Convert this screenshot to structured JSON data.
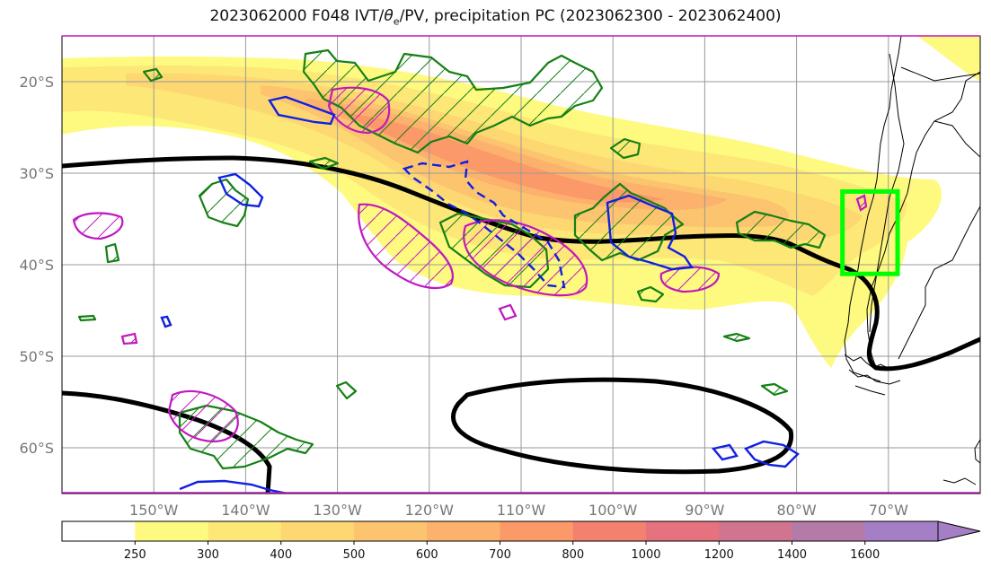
{
  "title": {
    "run": "2023062000 F048 IVT/",
    "theta": "θ",
    "theta_sub": "e",
    "rest": "/PV, precipitation PC (2023062300 - 2023062400)"
  },
  "lat_ticks": [
    {
      "value": -20,
      "label": "20°S"
    },
    {
      "value": -30,
      "label": "30°S"
    },
    {
      "value": -40,
      "label": "40°S"
    },
    {
      "value": -50,
      "label": "50°S"
    },
    {
      "value": -60,
      "label": "60°S"
    }
  ],
  "lon_ticks": [
    {
      "value": -150,
      "label": "150°W"
    },
    {
      "value": -140,
      "label": "140°W"
    },
    {
      "value": -130,
      "label": "130°W"
    },
    {
      "value": -120,
      "label": "120°W"
    },
    {
      "value": -110,
      "label": "110°W"
    },
    {
      "value": -100,
      "label": "100°W"
    },
    {
      "value": -90,
      "label": "90°W"
    },
    {
      "value": -80,
      "label": "80°W"
    },
    {
      "value": -70,
      "label": "70°W"
    }
  ],
  "extent": {
    "lon": [
      -160,
      -60
    ],
    "lat": [
      -65,
      -15
    ]
  },
  "colorbar": {
    "levels": [
      "250",
      "300",
      "400",
      "500",
      "600",
      "700",
      "800",
      "1000",
      "1200",
      "1400",
      "1600"
    ],
    "colors": [
      "#ffffff",
      "#fefa80",
      "#fde877",
      "#fdd772",
      "#fdc46f",
      "#fcb16c",
      "#fb9968",
      "#f48070",
      "#e6727f",
      "#d0748f",
      "#b47aa8",
      "#a57fc6"
    ],
    "extend": "max"
  },
  "ivt_layers": [
    {
      "level": "250",
      "color": "#fefa80"
    },
    {
      "level": "300",
      "color": "#fde877"
    },
    {
      "level": "400",
      "color": "#fdd772"
    },
    {
      "level": "500",
      "color": "#fdc46f"
    },
    {
      "level": "600",
      "color": "#fcb16c"
    },
    {
      "level": "700",
      "color": "#fb9968"
    }
  ],
  "box": {
    "color": "#00ff00",
    "lon": [
      -75,
      -69
    ],
    "lat": [
      -41,
      -32
    ]
  },
  "contour_colors": {
    "theta_e": "#000000",
    "precip": "#158015",
    "pv_magenta": "#c018c0",
    "pv_blue": "#1020e0"
  }
}
